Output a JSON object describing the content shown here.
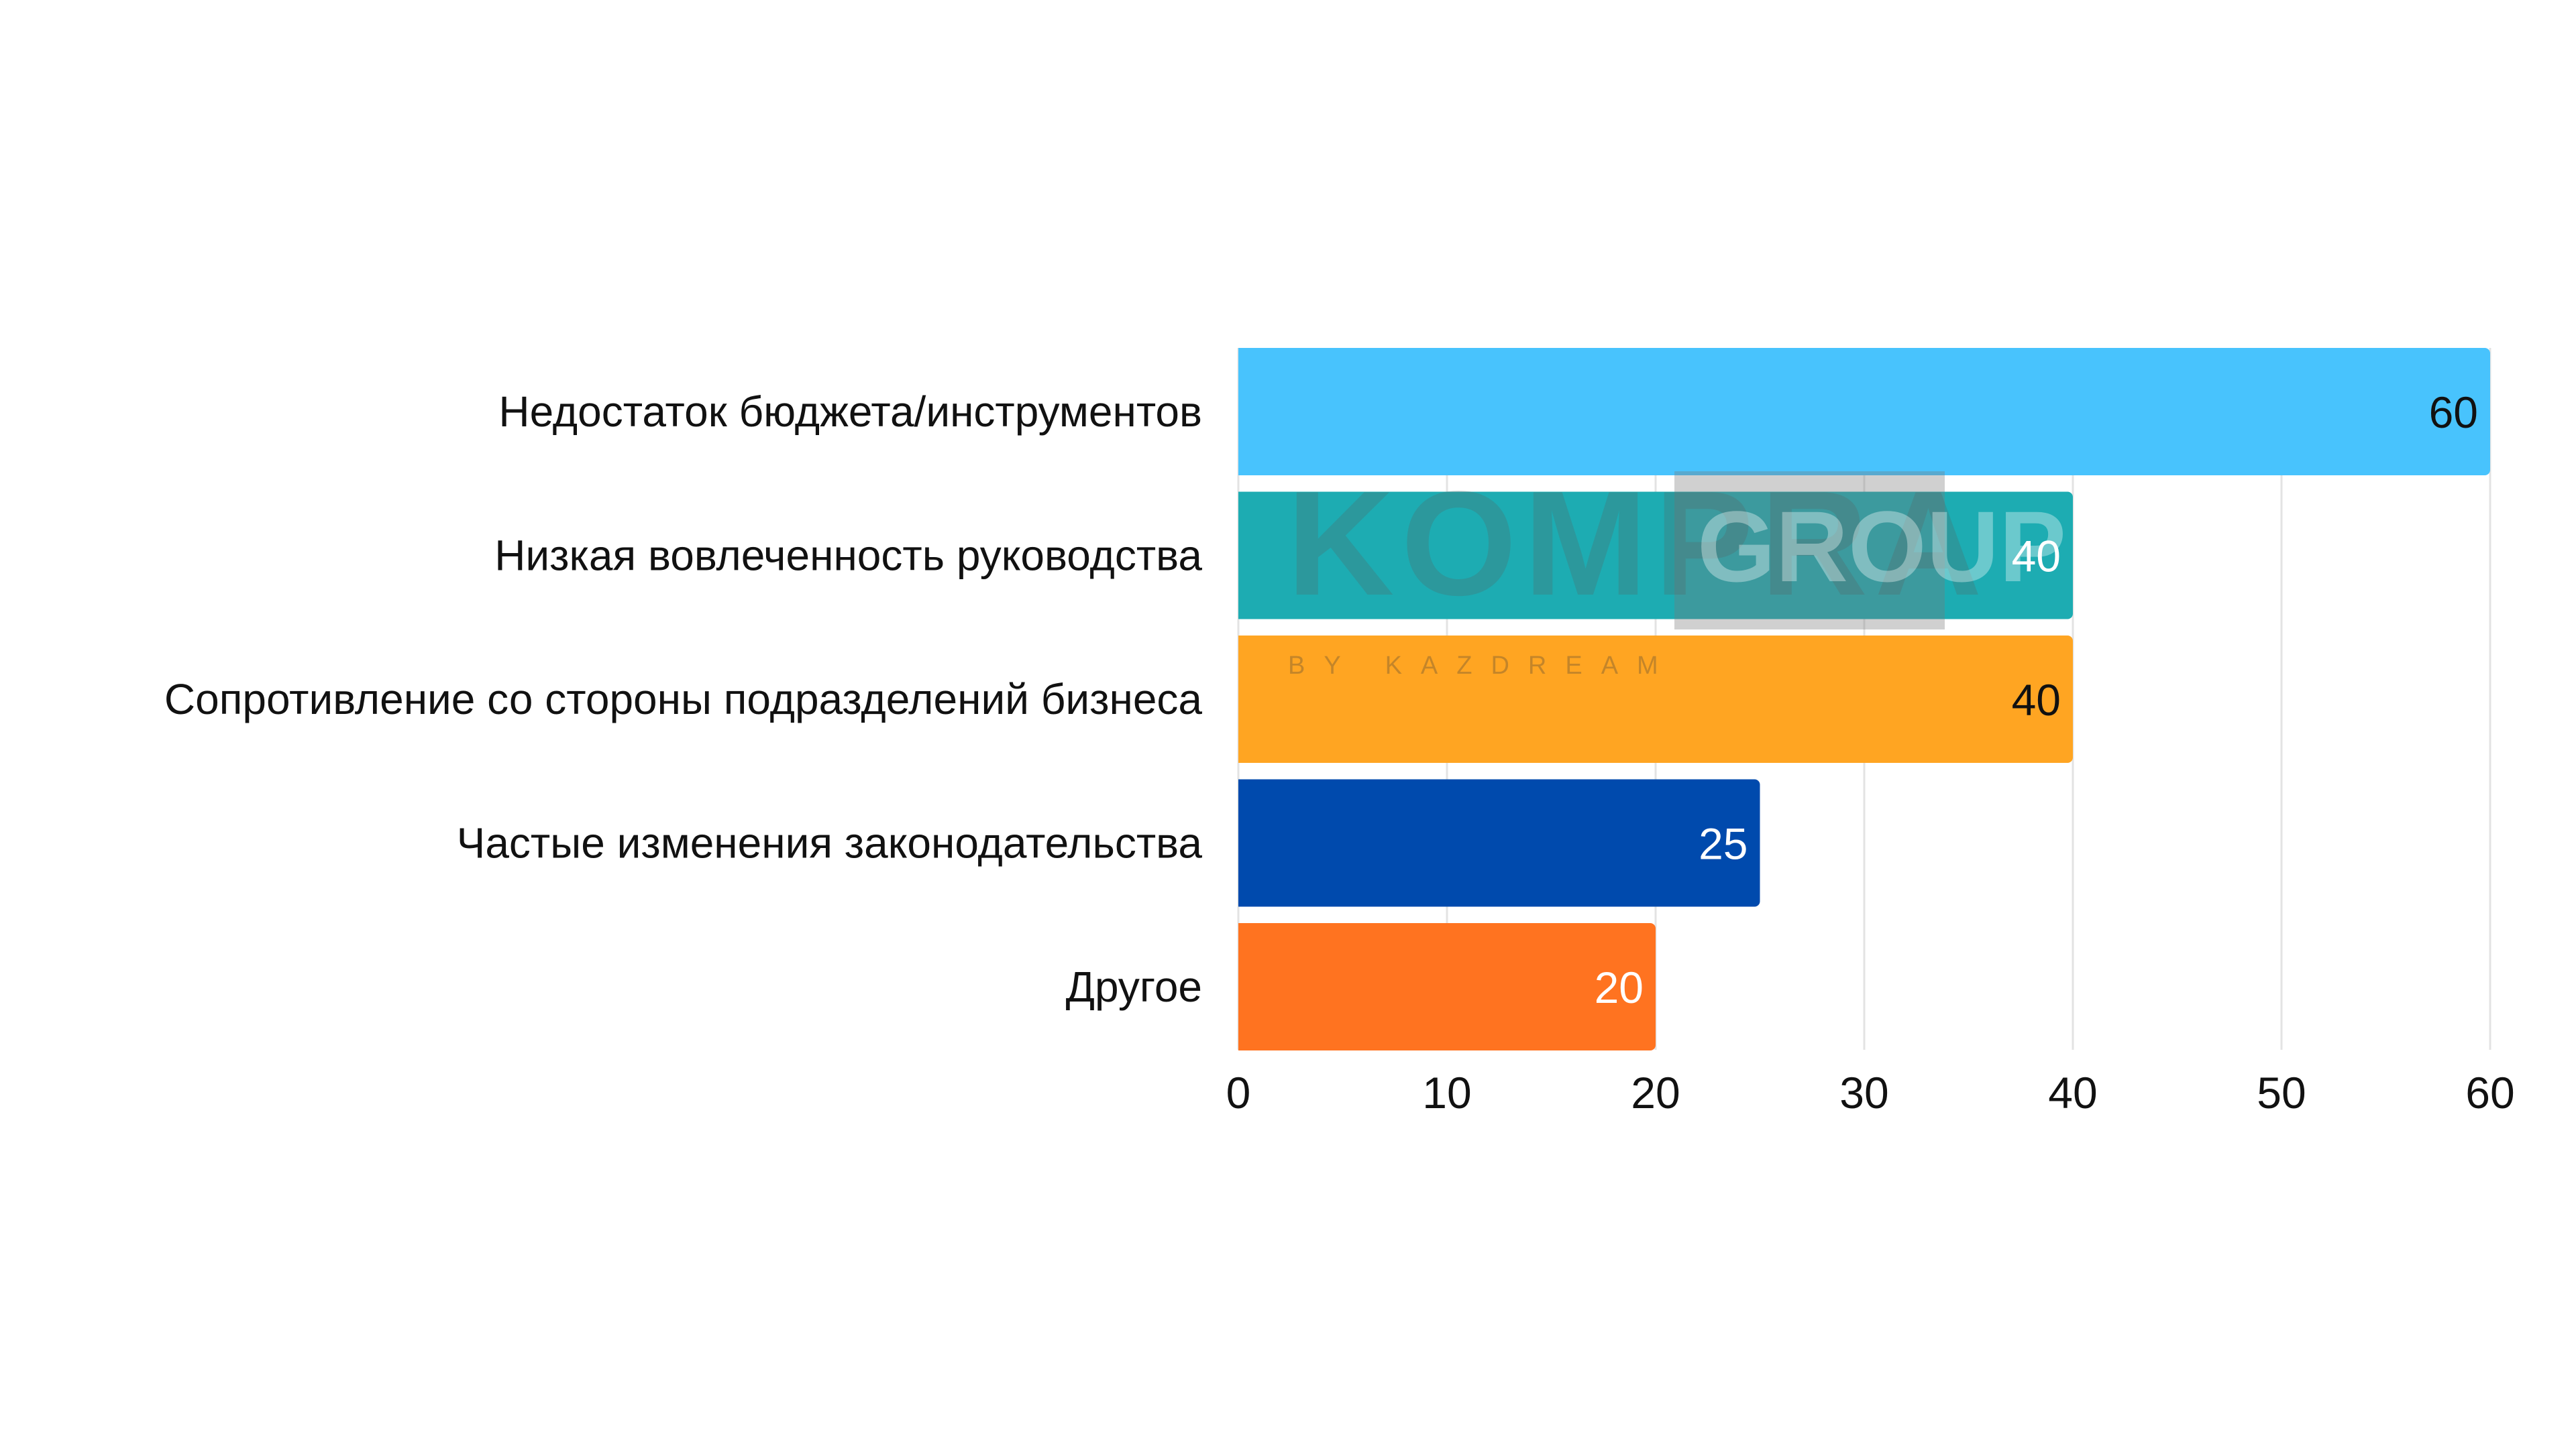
{
  "chart_data": {
    "type": "bar",
    "orientation": "horizontal",
    "categories": [
      "Недостаток бюджета/инструментов",
      "Низкая вовлеченность руководства",
      "Сопротивление со стороны подразделений бизнеса",
      "Частые изменения законодательства",
      "Другое"
    ],
    "values": [
      60,
      40,
      40,
      25,
      20
    ],
    "colors": [
      "#48C3FD",
      "#1DACB2",
      "#FFA522",
      "#004AAD",
      "#FF7320"
    ],
    "value_label_colors": [
      "#111111",
      "#ffffff",
      "#111111",
      "#ffffff",
      "#ffffff"
    ],
    "xlim": [
      0,
      60
    ],
    "xticks": [
      "0",
      "10",
      "20",
      "30",
      "40",
      "50",
      "60"
    ],
    "grid": "vertical",
    "title": "",
    "xlabel": "",
    "ylabel": ""
  },
  "watermark": {
    "brand": "KOMPRA",
    "box": "GROUP",
    "sub": "BY KAZDREAM"
  }
}
